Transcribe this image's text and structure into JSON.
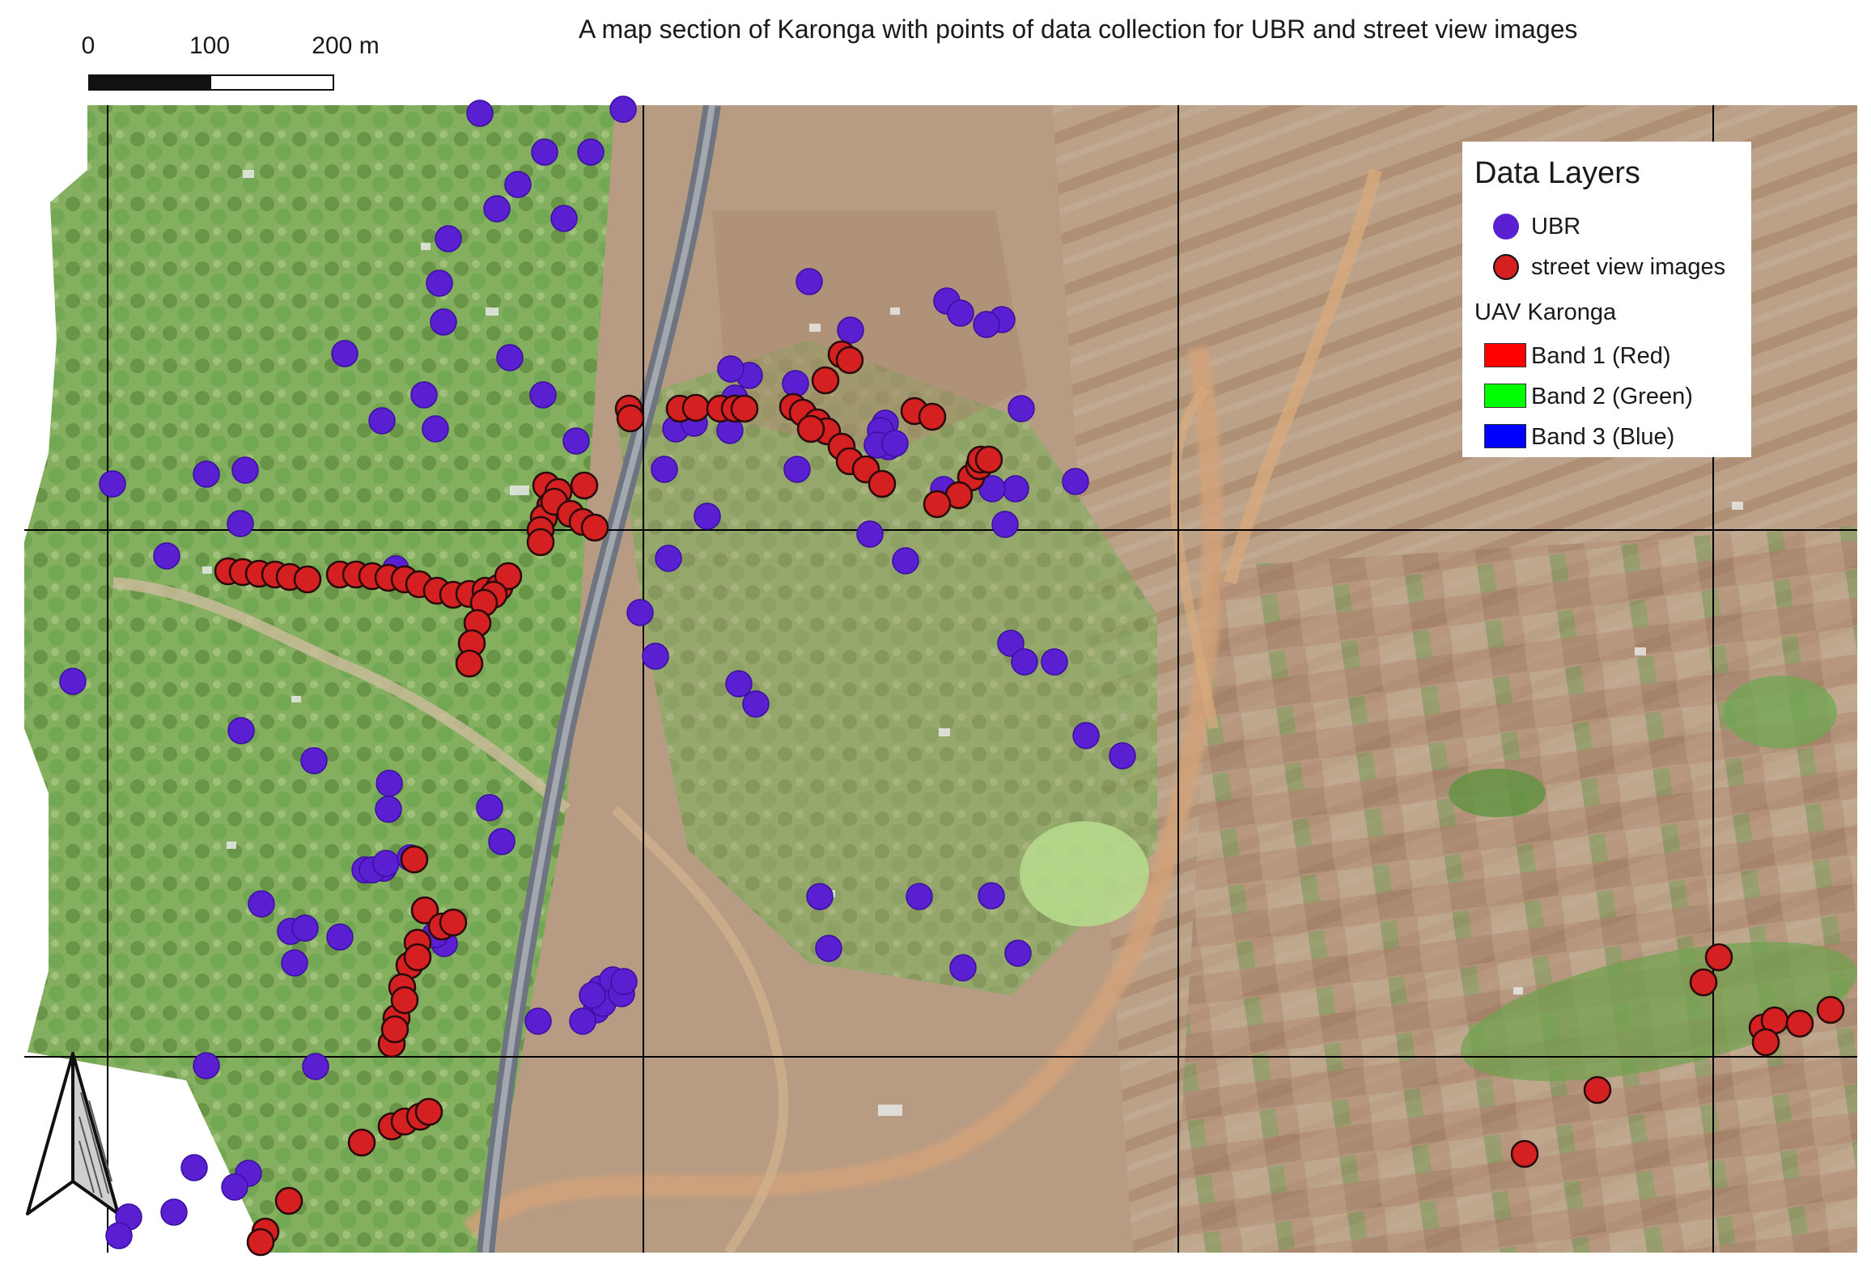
{
  "title": "A map section of Karonga with points of data collection for UBR and street view images",
  "scale_bar": {
    "labels": [
      "0",
      "100",
      "200 m"
    ]
  },
  "legend": {
    "title": "Data Layers",
    "points": [
      {
        "label": "UBR",
        "color": "#5a1fd1"
      },
      {
        "label": "street view images",
        "color": "#d42020"
      }
    ],
    "group_title": "UAV Karonga",
    "bands": [
      {
        "label": "Band 1 (Red)",
        "color": "#ff0000"
      },
      {
        "label": "Band 2 (Green)",
        "color": "#00ff00"
      },
      {
        "label": "Band 3 (Blue)",
        "color": "#0000ff"
      }
    ]
  },
  "colors": {
    "ubr": "#5a1fd1",
    "street_view": "#d42020",
    "vegetation": "#6aa84f",
    "farmland": "#b89b80",
    "road": "#8a8f99",
    "river": "#d2a27a"
  },
  "icons": {
    "north_arrow": "north-arrow-icon"
  }
}
